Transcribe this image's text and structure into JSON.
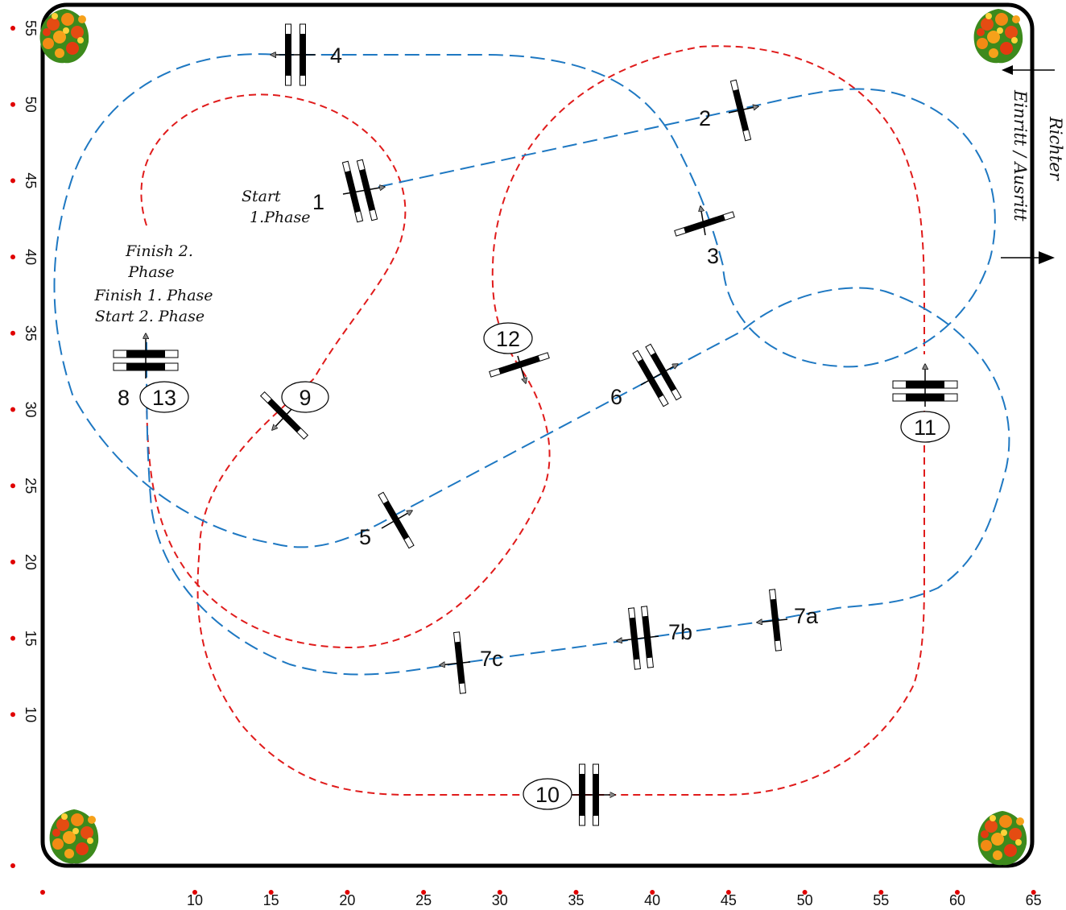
{
  "arena": {
    "entrance_label": "Einritt / Ausritt",
    "judge_label": "Richter"
  },
  "axes": {
    "x_ticks": [
      "10",
      "15",
      "20",
      "25",
      "30",
      "35",
      "40",
      "45",
      "50",
      "55",
      "60",
      "65"
    ],
    "y_ticks": [
      "55",
      "50",
      "45",
      "40",
      "35",
      "30",
      "25",
      "20",
      "15",
      "10"
    ]
  },
  "annotations": {
    "start_phase1_line1": "Start",
    "start_phase1_line2": "1.Phase",
    "finish2_line1": "Finish 2.",
    "finish2_line2": "Phase",
    "finish1": "Finish 1. Phase",
    "start2": "Start 2. Phase"
  },
  "obstacles": {
    "o1": "1",
    "o2": "2",
    "o3": "3",
    "o4": "4",
    "o5": "5",
    "o6": "6",
    "o7a": "7a",
    "o7b": "7b",
    "o7c": "7c",
    "o8": "8",
    "o9": "9",
    "o10": "10",
    "o11": "11",
    "o12": "12",
    "o13": "13"
  },
  "colors": {
    "phase1_route": "#1e78c2",
    "phase2_route": "#e01b1b",
    "border": "#000000",
    "marker": "#e00000"
  }
}
